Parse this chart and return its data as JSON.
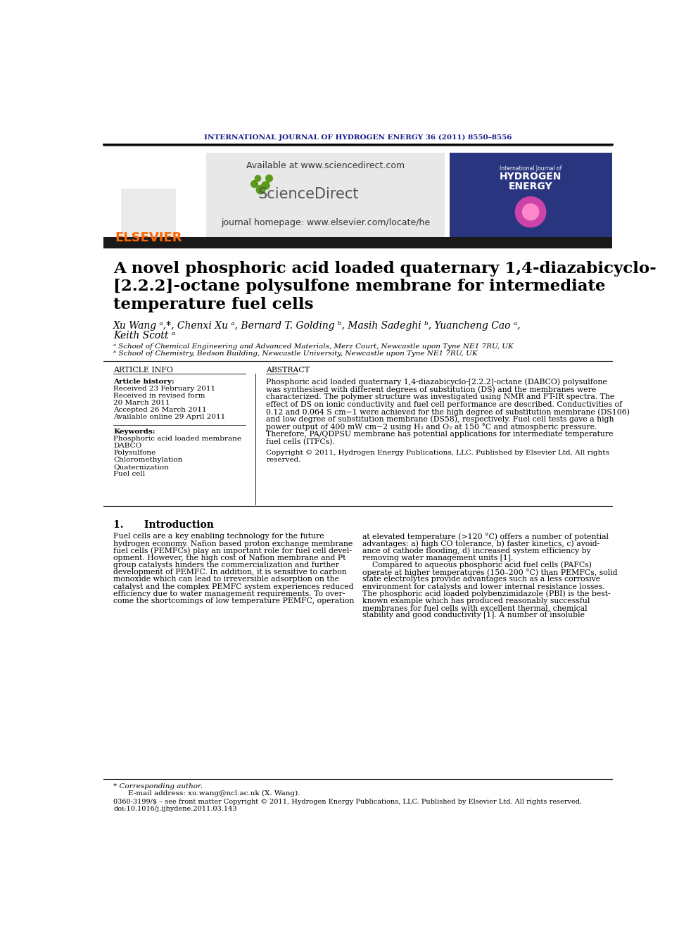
{
  "journal_header": "INTERNATIONAL JOURNAL OF HYDROGEN ENERGY 36 (2011) 8550–8556",
  "header_color": "#1a1a8c",
  "elsevier_color": "#ff6600",
  "title_line1": "A novel phosphoric acid loaded quaternary 1,4-diazabicyclo-",
  "title_line2": "[2.2.2]-octane polysulfone membrane for intermediate",
  "title_line3": "temperature fuel cells",
  "authors_line1": "Xu Wang ᵃ,*, Chenxi Xu ᵃ, Bernard T. Golding ᵇ, Masih Sadeghi ᵇ, Yuancheng Cao ᵃ,",
  "authors_line2": "Keith Scott ᵃ",
  "affiliation_a": "ᵃ School of Chemical Engineering and Advanced Materials, Merz Court, Newcastle upon Tyne NE1 7RU, UK",
  "affiliation_b": "ᵇ School of Chemistry, Bedson Building, Newcastle University, Newcastle upon Tyne NE1 7RU, UK",
  "article_info_label": "ARTICLE INFO",
  "abstract_label": "ABSTRACT",
  "article_history_label": "Article history:",
  "received_1": "Received 23 February 2011",
  "received_revised_1": "Received in revised form",
  "received_revised_2": "20 March 2011",
  "accepted": "Accepted 26 March 2011",
  "available": "Available online 29 April 2011",
  "keywords_label": "Keywords:",
  "keywords": [
    "Phosphoric acid loaded membrane",
    "DABCO",
    "Polysulfone",
    "Chloromethylation",
    "Quaternization",
    "Fuel cell"
  ],
  "abstract_lines": [
    "Phosphoric acid loaded quaternary 1,4-diazabicyclo-[2.2.2]-octane (DABCO) polysulfone",
    "was synthesised with different degrees of substitution (DS) and the membranes were",
    "characterized. The polymer structure was investigated using NMR and FT-IR spectra. The",
    "effect of DS on ionic conductivity and fuel cell performance are described. Conductivities of",
    "0.12 and 0.064 S cm−1 were achieved for the high degree of substitution membrane (DS106)",
    "and low degree of substitution membrane (DS58), respectively. Fuel cell tests gave a high",
    "power output of 400 mW cm−2 using H₂ and O₂ at 150 °C and atmospheric pressure.",
    "Therefore, PA/QDPSU membrane has potential applications for intermediate temperature",
    "fuel cells (ITFCs)."
  ],
  "copyright_line1": "Copyright © 2011, Hydrogen Energy Publications, LLC. Published by Elsevier Ltd. All rights",
  "copyright_line2": "reserved.",
  "section_intro": "1.      Introduction",
  "intro_col1_lines": [
    "Fuel cells are a key enabling technology for the future",
    "hydrogen economy. Nafion based proton exchange membrane",
    "fuel cells (PEMFCs) play an important role for fuel cell devel-",
    "opment. However, the high cost of Nafion membrane and Pt",
    "group catalysts hinders the commercialization and further",
    "development of PEMFC. In addition, it is sensitive to carbon",
    "monoxide which can lead to irreversible adsorption on the",
    "catalyst and the complex PEMFC system experiences reduced",
    "efficiency due to water management requirements. To over-",
    "come the shortcomings of low temperature PEMFC, operation"
  ],
  "intro_col2_lines": [
    "at elevated temperature (>120 °C) offers a number of potential",
    "advantages: a) high CO tolerance, b) faster kinetics, c) avoid-",
    "ance of cathode flooding, d) increased system efficiency by",
    "removing water management units [1].",
    "    Compared to aqueous phosphoric acid fuel cells (PAFCs)",
    "operate at higher temperatures (150–200 °C) than PEMFCs, solid",
    "state electrolytes provide advantages such as a less corrosive",
    "environment for catalysts and lower internal resistance losses.",
    "The phosphoric acid loaded polybenzimidazole (PBI) is the best-",
    "known example which has produced reasonably successful",
    "membranes for fuel cells with excellent thermal, chemical",
    "stability and good conductivity [1]. A number of insoluble"
  ],
  "footnote_star": "* Corresponding author.",
  "footnote_email": "E-mail address: xu.wang@ncl.ac.uk (X. Wang).",
  "footnote_issn": "0360-3199/$ – see front matter Copyright © 2011, Hydrogen Energy Publications, LLC. Published by Elsevier Ltd. All rights reserved.",
  "footnote_doi": "doi:10.1016/j.ijhydene.2011.03.143",
  "bg_color": "#ffffff",
  "text_color": "#000000",
  "dark_bar_color": "#1a1a1a",
  "sd_bg": "#e8e8e8",
  "available_url": "Available at www.sciencedirect.com",
  "homepage_text": "journal homepage: www.elsevier.com/locate/he"
}
